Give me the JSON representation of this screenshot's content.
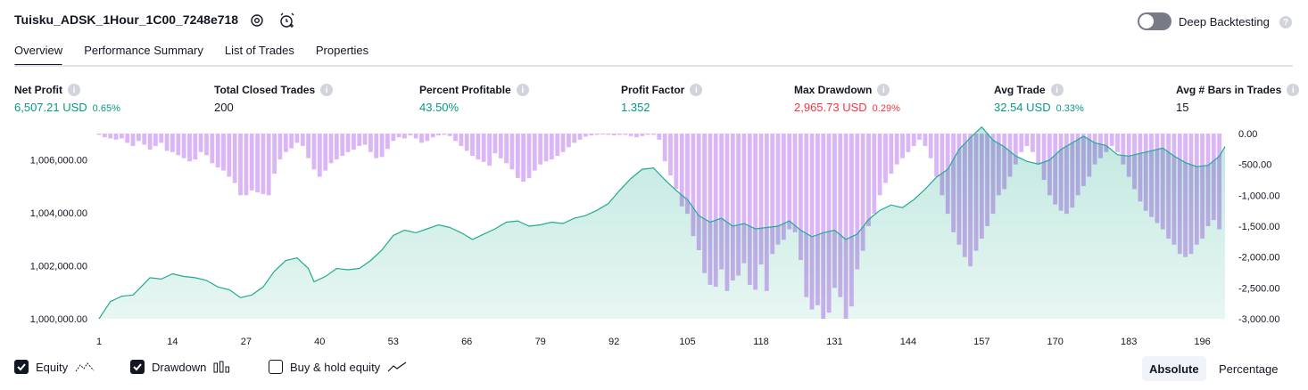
{
  "header": {
    "title": "Tuisku_ADSK_1Hour_1C00_7248e718",
    "deep_backtesting_label": "Deep Backtesting",
    "deep_backtesting_on": false
  },
  "tabs": [
    {
      "label": "Overview",
      "active": true
    },
    {
      "label": "Performance Summary",
      "active": false
    },
    {
      "label": "List of Trades",
      "active": false
    },
    {
      "label": "Properties",
      "active": false
    }
  ],
  "metrics": [
    {
      "label": "Net Profit",
      "value": "6,507.21 USD",
      "pct": "0.65%",
      "color": "#089981"
    },
    {
      "label": "Total Closed Trades",
      "value": "200",
      "pct": "",
      "color": "#131722"
    },
    {
      "label": "Percent Profitable",
      "value": "43.50%",
      "pct": "",
      "color": "#089981"
    },
    {
      "label": "Profit Factor",
      "value": "1.352",
      "pct": "",
      "color": "#089981"
    },
    {
      "label": "Max Drawdown",
      "value": "2,965.73 USD",
      "pct": "0.29%",
      "color": "#f23645"
    },
    {
      "label": "Avg Trade",
      "value": "32.54 USD",
      "pct": "0.33%",
      "color": "#089981"
    },
    {
      "label": "Avg # Bars in Trades",
      "value": "15",
      "pct": "",
      "color": "#131722"
    }
  ],
  "legend": [
    {
      "label": "Equity",
      "checked": true,
      "icon": "equity-line-icon"
    },
    {
      "label": "Drawdown",
      "checked": true,
      "icon": "drawdown-bars-icon"
    },
    {
      "label": "Buy & hold equity",
      "checked": false,
      "icon": "buy-hold-line-icon"
    }
  ],
  "view_mode": {
    "options": [
      "Absolute",
      "Percentage"
    ],
    "selected": "Absolute"
  },
  "colors": {
    "equity_line": "#22ab94",
    "equity_fill": "#e1f3ef",
    "drawdown_bar": "#dbb6f6",
    "overlap": "#aeb2e6"
  },
  "chart_data": {
    "type": "area",
    "left_axis_ticks": [
      "1,006,000.00",
      "1,004,000.00",
      "1,002,000.00",
      "1,000,000.00"
    ],
    "left_axis_values": [
      1006000,
      1004000,
      1002000,
      1000000
    ],
    "right_axis_ticks": [
      "0.00",
      "-500.00",
      "-1,000.00",
      "-1,500.00",
      "-2,000.00",
      "-2,500.00",
      "-3,000.00"
    ],
    "right_axis_values": [
      0,
      -500,
      -1000,
      -1500,
      -2000,
      -2500,
      -3000
    ],
    "x_ticks": [
      "1",
      "14",
      "27",
      "40",
      "53",
      "66",
      "79",
      "92",
      "105",
      "118",
      "131",
      "144",
      "157",
      "170",
      "183",
      "196"
    ],
    "x_range": [
      1,
      200
    ],
    "equity_range": [
      1000000,
      1007000
    ],
    "drawdown_range": [
      -3000,
      0
    ],
    "series": [
      {
        "name": "Equity",
        "points": [
          [
            1,
            1000000
          ],
          [
            3,
            1000650
          ],
          [
            5,
            1000850
          ],
          [
            7,
            1000900
          ],
          [
            10,
            1001550
          ],
          [
            12,
            1001500
          ],
          [
            14,
            1001700
          ],
          [
            16,
            1001600
          ],
          [
            18,
            1001550
          ],
          [
            20,
            1001450
          ],
          [
            22,
            1001200
          ],
          [
            24,
            1001100
          ],
          [
            26,
            1000800
          ],
          [
            28,
            1000900
          ],
          [
            30,
            1001200
          ],
          [
            32,
            1001800
          ],
          [
            34,
            1002200
          ],
          [
            36,
            1002300
          ],
          [
            38,
            1001900
          ],
          [
            39,
            1001400
          ],
          [
            41,
            1001600
          ],
          [
            43,
            1001900
          ],
          [
            45,
            1001850
          ],
          [
            47,
            1001900
          ],
          [
            49,
            1002200
          ],
          [
            51,
            1002600
          ],
          [
            53,
            1003150
          ],
          [
            55,
            1003350
          ],
          [
            57,
            1003250
          ],
          [
            59,
            1003400
          ],
          [
            61,
            1003550
          ],
          [
            63,
            1003450
          ],
          [
            65,
            1003250
          ],
          [
            67,
            1003000
          ],
          [
            69,
            1003200
          ],
          [
            71,
            1003400
          ],
          [
            73,
            1003650
          ],
          [
            75,
            1003700
          ],
          [
            77,
            1003500
          ],
          [
            79,
            1003550
          ],
          [
            81,
            1003650
          ],
          [
            83,
            1003600
          ],
          [
            85,
            1003800
          ],
          [
            87,
            1003900
          ],
          [
            89,
            1004100
          ],
          [
            91,
            1004350
          ],
          [
            93,
            1004850
          ],
          [
            95,
            1005300
          ],
          [
            97,
            1005650
          ],
          [
            99,
            1005700
          ],
          [
            101,
            1005250
          ],
          [
            103,
            1004850
          ],
          [
            105,
            1004500
          ],
          [
            107,
            1003900
          ],
          [
            109,
            1003650
          ],
          [
            111,
            1003800
          ],
          [
            113,
            1003500
          ],
          [
            115,
            1003600
          ],
          [
            117,
            1003400
          ],
          [
            119,
            1003450
          ],
          [
            121,
            1003500
          ],
          [
            123,
            1003700
          ],
          [
            125,
            1003350
          ],
          [
            127,
            1003100
          ],
          [
            129,
            1003250
          ],
          [
            131,
            1003350
          ],
          [
            133,
            1003000
          ],
          [
            135,
            1003200
          ],
          [
            137,
            1003750
          ],
          [
            139,
            1004100
          ],
          [
            141,
            1004300
          ],
          [
            143,
            1004200
          ],
          [
            145,
            1004500
          ],
          [
            147,
            1004900
          ],
          [
            149,
            1005350
          ],
          [
            151,
            1005650
          ],
          [
            153,
            1006400
          ],
          [
            155,
            1006850
          ],
          [
            157,
            1007250
          ],
          [
            159,
            1006750
          ],
          [
            161,
            1006500
          ],
          [
            163,
            1006150
          ],
          [
            165,
            1005950
          ],
          [
            167,
            1005850
          ],
          [
            169,
            1006000
          ],
          [
            171,
            1006400
          ],
          [
            173,
            1006650
          ],
          [
            175,
            1006900
          ],
          [
            177,
            1006650
          ],
          [
            179,
            1006550
          ],
          [
            181,
            1006200
          ],
          [
            183,
            1006150
          ],
          [
            185,
            1006250
          ],
          [
            187,
            1006350
          ],
          [
            189,
            1006450
          ],
          [
            191,
            1006150
          ],
          [
            193,
            1005900
          ],
          [
            195,
            1005750
          ],
          [
            197,
            1005800
          ],
          [
            199,
            1006150
          ],
          [
            200,
            1006507
          ]
        ]
      },
      {
        "name": "Drawdown",
        "values": [
          -20,
          -60,
          -80,
          -100,
          -80,
          -150,
          -200,
          -120,
          -180,
          -260,
          -200,
          -150,
          -280,
          -300,
          -350,
          -400,
          -450,
          -420,
          -300,
          -350,
          -480,
          -550,
          -600,
          -700,
          -800,
          -1000,
          -1000,
          -920,
          -950,
          -980,
          -1000,
          -650,
          -420,
          -300,
          -240,
          -150,
          -200,
          -400,
          -580,
          -700,
          -600,
          -480,
          -420,
          -360,
          -300,
          -260,
          -200,
          -180,
          -300,
          -400,
          -380,
          -250,
          -120,
          -60,
          -80,
          -30,
          -80,
          -150,
          -120,
          -60,
          -30,
          -20,
          -40,
          -120,
          -200,
          -280,
          -360,
          -420,
          -460,
          -520,
          -320,
          -400,
          -480,
          -580,
          -720,
          -780,
          -720,
          -600,
          -500,
          -450,
          -420,
          -360,
          -300,
          -220,
          -150,
          -100,
          -50,
          -30,
          -20,
          -10,
          -20,
          -30,
          -20,
          -20,
          -40,
          -60,
          -40,
          -20,
          -20,
          -100,
          -450,
          -680,
          -900,
          -1180,
          -1300,
          -1660,
          -1890,
          -2260,
          -2450,
          -2480,
          -2200,
          -2550,
          -2380,
          -2300,
          -2100,
          -2450,
          -2530,
          -2120,
          -2550,
          -1950,
          -1800,
          -1720,
          -1550,
          -1600,
          -2050,
          -2650,
          -2850,
          -2780,
          -3000,
          -2900,
          -2500,
          -2650,
          -3000,
          -2800,
          -2200,
          -1900,
          -1500,
          -1300,
          -1000,
          -800,
          -650,
          -500,
          -400,
          -300,
          -200,
          -100,
          -200,
          -400,
          -700,
          -1000,
          -1300,
          -1600,
          -1800,
          -2000,
          -2150,
          -1900,
          -1700,
          -1500,
          -1300,
          -1000,
          -900,
          -700,
          -500,
          -300,
          -200,
          -300,
          -500,
          -750,
          -1000,
          -1150,
          -1250,
          -1300,
          -1200,
          -1000,
          -850,
          -700,
          -500,
          -400,
          -300,
          -200,
          -300,
          -500,
          -700,
          -900,
          -1100,
          -1250,
          -1350,
          -1450,
          -1550,
          -1700,
          -1800,
          -1950,
          -2000,
          -1950,
          -1800,
          -1700,
          -1500,
          -1400,
          -1550
        ]
      }
    ]
  }
}
